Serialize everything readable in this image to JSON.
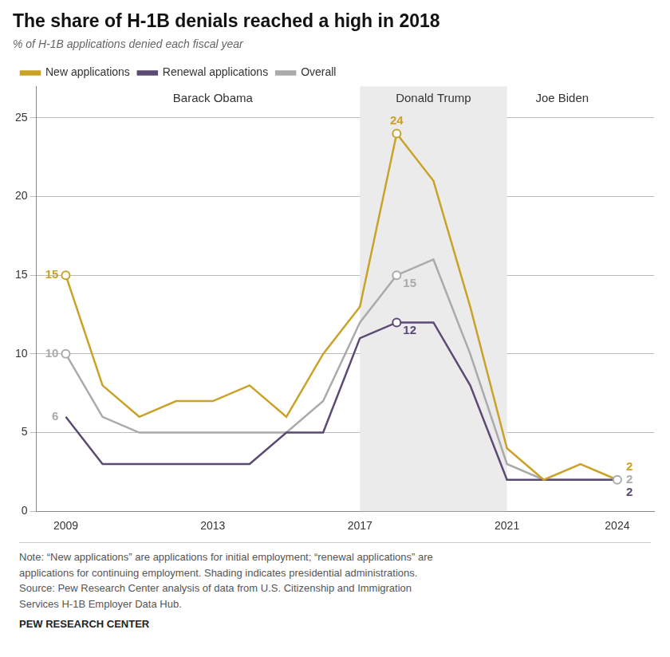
{
  "chart_data": {
    "type": "line",
    "title": "The share of H-1B denials reached a high in 2018",
    "subtitle": "% of H-1B applications denied each fiscal year",
    "x": [
      2009,
      2010,
      2011,
      2012,
      2013,
      2014,
      2015,
      2016,
      2017,
      2018,
      2019,
      2020,
      2021,
      2022,
      2023,
      2024
    ],
    "series": [
      {
        "name": "New applications",
        "color": "#C9A227",
        "values": [
          15,
          8,
          6,
          7,
          7,
          8,
          6,
          10,
          13,
          24,
          21,
          13,
          4,
          2,
          3,
          2
        ]
      },
      {
        "name": "Renewal applications",
        "color": "#5B4A72",
        "values": [
          6,
          3,
          3,
          3,
          3,
          3,
          5,
          5,
          11,
          12,
          12,
          8,
          2,
          2,
          2,
          2
        ]
      },
      {
        "name": "Overall",
        "color": "#AAAAAA",
        "values": [
          10,
          6,
          5,
          5,
          5,
          5,
          5,
          7,
          12,
          15,
          16,
          10,
          3,
          2,
          2,
          2
        ]
      }
    ],
    "xlim": [
      2008.2,
      2025.0
    ],
    "xticks": [
      2009,
      2013,
      2017,
      2021,
      2024
    ],
    "ylim": [
      0,
      27
    ],
    "yticks": [
      0,
      5,
      10,
      15,
      20,
      25
    ],
    "grid": true,
    "legend": "top",
    "shaded_regions": [
      {
        "start": 2017,
        "end": 2021,
        "color": "#EBEBEB"
      }
    ],
    "point_labels": [
      {
        "x": 2009,
        "y": 15,
        "text": "15",
        "color": "#C9A227",
        "marker": "circle"
      },
      {
        "x": 2009,
        "y": 10,
        "text": "10",
        "color": "#AAAAAA",
        "marker": "circle"
      },
      {
        "x": 2009,
        "y": 6,
        "text": "6",
        "color": "#AAAAAA"
      },
      {
        "x": 2018,
        "y": 24,
        "text": "24",
        "color": "#C9A227",
        "marker": "circle"
      },
      {
        "x": 2018,
        "y": 15,
        "text": "15",
        "color": "#AAAAAA",
        "marker": "circle"
      },
      {
        "x": 2018,
        "y": 12,
        "text": "12",
        "color": "#5B4A72",
        "marker": "circle"
      },
      {
        "x": 2024,
        "y": 2,
        "text": "2",
        "color": "#C9A227"
      },
      {
        "x": 2024,
        "y": 2,
        "text": "2",
        "color": "#AAAAAA",
        "marker": "circle"
      },
      {
        "x": 2024,
        "y": 2,
        "text": "2",
        "color": "#5B4A72"
      }
    ],
    "annotations": [
      {
        "x": 2013,
        "y": 26.2,
        "text": "Barack Obama"
      },
      {
        "x": 2019,
        "y": 26.2,
        "text": "Donald Trump"
      },
      {
        "x": 2022.5,
        "y": 26.2,
        "text": "Joe Biden"
      }
    ],
    "note": "Note: “New applications” are applications for initial employment; “renewal applications” are\napplications for continuing employment. Shading indicates presidential administrations.\nSource: Pew Research Center analysis of data from U.S. Citizenship and Immigration\nServices H-1B Employer Data Hub.",
    "footer": "PEW RESEARCH CENTER"
  }
}
